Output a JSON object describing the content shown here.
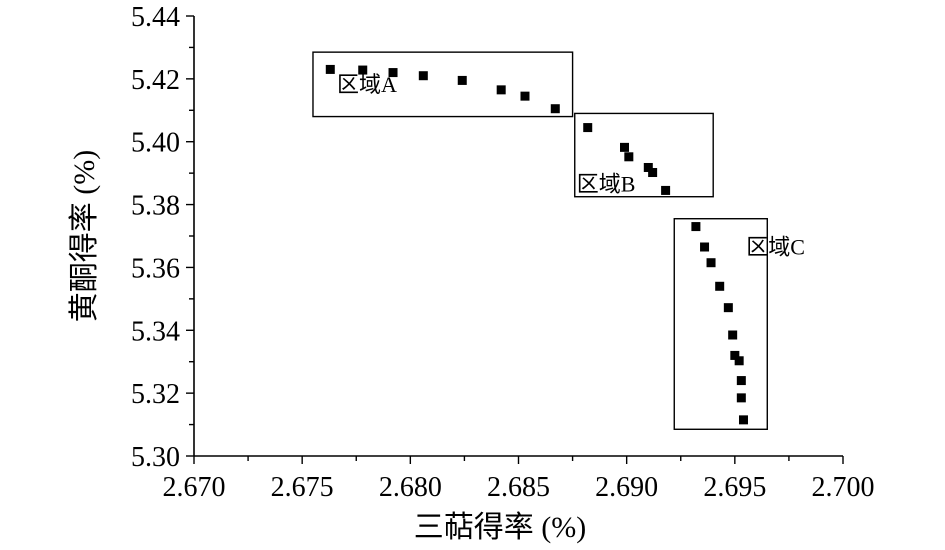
{
  "chart_data": {
    "type": "scatter",
    "xlabel": "三萜得率 (%)",
    "ylabel": "黄酮得率 (%)",
    "xlim": [
      2.67,
      2.7
    ],
    "ylim": [
      5.3,
      5.44
    ],
    "xticks": [
      "2.670",
      "2.675",
      "2.680",
      "2.685",
      "2.690",
      "2.695",
      "2.700"
    ],
    "yticks": [
      "5.30",
      "5.32",
      "5.34",
      "5.36",
      "5.38",
      "5.40",
      "5.42",
      "5.44"
    ],
    "marker_color": "#000000",
    "series": [
      {
        "x": [
          2.6763,
          2.6778,
          2.6792,
          2.6806,
          2.6824,
          2.6842,
          2.6853,
          2.6867,
          2.6882,
          2.6899,
          2.6901,
          2.691,
          2.6912,
          2.6918,
          2.6932,
          2.6936,
          2.6939,
          2.6943,
          2.6947,
          2.6949,
          2.695,
          2.6952,
          2.6953,
          2.6953,
          2.6954
        ],
        "y": [
          5.423,
          5.4228,
          5.422,
          5.421,
          5.4195,
          5.4165,
          5.4145,
          5.4105,
          5.4045,
          5.3982,
          5.3952,
          5.3918,
          5.3902,
          5.3845,
          5.373,
          5.3665,
          5.3615,
          5.354,
          5.3472,
          5.3385,
          5.332,
          5.3303,
          5.324,
          5.3185,
          5.3115
        ]
      }
    ],
    "regions": [
      {
        "label": "区域A",
        "x": [
          2.6755,
          2.6875
        ],
        "y": [
          5.408,
          5.4285
        ]
      },
      {
        "label": "区域B",
        "x": [
          2.6876,
          2.694
        ],
        "y": [
          5.3825,
          5.409
        ]
      },
      {
        "label": "区域C",
        "x": [
          2.6922,
          2.6965
        ],
        "y": [
          5.3085,
          5.3755
        ]
      }
    ],
    "grid": false,
    "legend": "none"
  }
}
